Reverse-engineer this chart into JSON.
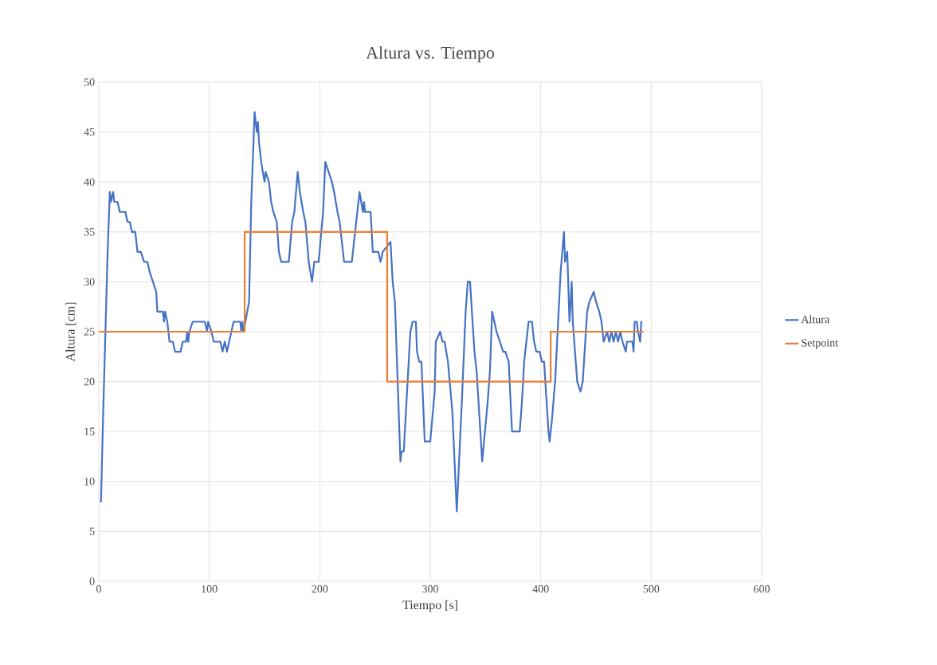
{
  "chart_data": {
    "type": "line",
    "title": "Altura vs. Tiempo",
    "xlabel": "Tiempo [s]",
    "ylabel": "Altura [cm]",
    "xlim": [
      0,
      600
    ],
    "ylim": [
      0,
      50
    ],
    "xticks": [
      0,
      100,
      200,
      300,
      400,
      500,
      600
    ],
    "yticks": [
      0,
      5,
      10,
      15,
      20,
      25,
      30,
      35,
      40,
      45,
      50
    ],
    "grid": true,
    "legend": "right",
    "marker": "none",
    "line_style": "solid",
    "series": [
      {
        "name": "Altura",
        "color": "#4472c4",
        "x": [
          1,
          2,
          4,
          8,
          10,
          11,
          13,
          14,
          17,
          19,
          24,
          26,
          28,
          30,
          33,
          35,
          38,
          41,
          44,
          46,
          49,
          52,
          53,
          58,
          59,
          60,
          62,
          64,
          67,
          69,
          74,
          76,
          79,
          80,
          81,
          82,
          85,
          96,
          98,
          99,
          102,
          104,
          110,
          112,
          114,
          116,
          120,
          122,
          128,
          129,
          130,
          131,
          136,
          138,
          141,
          143,
          144,
          145,
          147,
          150,
          151,
          154,
          156,
          158,
          161,
          163,
          165,
          172,
          175,
          177,
          180,
          182,
          185,
          187,
          190,
          193,
          195,
          199,
          203,
          205,
          208,
          211,
          213,
          216,
          218,
          222,
          229,
          231,
          234,
          236,
          239,
          240,
          241,
          246,
          248,
          253,
          255,
          257,
          264,
          266,
          268,
          273,
          274,
          276,
          280,
          282,
          284,
          287,
          288,
          290,
          292,
          295,
          300,
          304,
          305,
          309,
          311,
          313,
          316,
          320,
          324,
          329,
          332,
          334,
          336,
          340,
          342,
          347,
          352,
          354,
          356,
          360,
          363,
          366,
          368,
          371,
          374,
          381,
          383,
          385,
          389,
          392,
          394,
          396,
          399,
          401,
          403,
          407,
          408,
          410,
          413,
          418,
          421,
          422,
          424,
          426,
          428,
          429,
          433,
          436,
          438,
          442,
          444,
          448,
          450,
          453,
          455,
          457,
          460,
          462,
          464,
          466,
          468,
          470,
          472,
          474,
          477,
          478,
          483,
          484,
          485,
          487,
          488,
          490,
          491,
          492
        ],
        "values": [
          8,
          8,
          17,
          33,
          39,
          38,
          39,
          38,
          38,
          37,
          37,
          36,
          36,
          35,
          35,
          33,
          33,
          32,
          32,
          31,
          30,
          29,
          27,
          27,
          26,
          27,
          26,
          24,
          24,
          23,
          23,
          24,
          24,
          25,
          24,
          25,
          26,
          26,
          25,
          26,
          25,
          24,
          24,
          23,
          24,
          23,
          25,
          26,
          26,
          25,
          26,
          25,
          28,
          38,
          47,
          45,
          46,
          44,
          42,
          40,
          41,
          40,
          38,
          37,
          36,
          33,
          32,
          32,
          36,
          37,
          41,
          39,
          37,
          36,
          32,
          30,
          32,
          32,
          37,
          42,
          41,
          40,
          39,
          37,
          36,
          32,
          32,
          34,
          37,
          39,
          37,
          38,
          37,
          37,
          33,
          33,
          32,
          33,
          34,
          30,
          28,
          12,
          13,
          13,
          21,
          25,
          26,
          26,
          23,
          22,
          22,
          14,
          14,
          19,
          24,
          25,
          24,
          24,
          22,
          17,
          7,
          19,
          27,
          30,
          30,
          23,
          21,
          12,
          18,
          21,
          27,
          25,
          24,
          23,
          23,
          22,
          15,
          15,
          18,
          22,
          26,
          26,
          24,
          23,
          23,
          22,
          22,
          15,
          14,
          16,
          20,
          31,
          35,
          32,
          33,
          26,
          30,
          26,
          20,
          19,
          20,
          27,
          28,
          29,
          28,
          27,
          26,
          24,
          25,
          24,
          25,
          24,
          25,
          24,
          25,
          24,
          23,
          24,
          24,
          23,
          26,
          26,
          25,
          24,
          26,
          26
        ]
      },
      {
        "name": "Setpoint",
        "color": "#ed7d31",
        "x": [
          0,
          132,
          132,
          261,
          261,
          409,
          409,
          493
        ],
        "values": [
          25,
          25,
          35,
          35,
          20,
          20,
          25,
          25
        ]
      }
    ]
  }
}
